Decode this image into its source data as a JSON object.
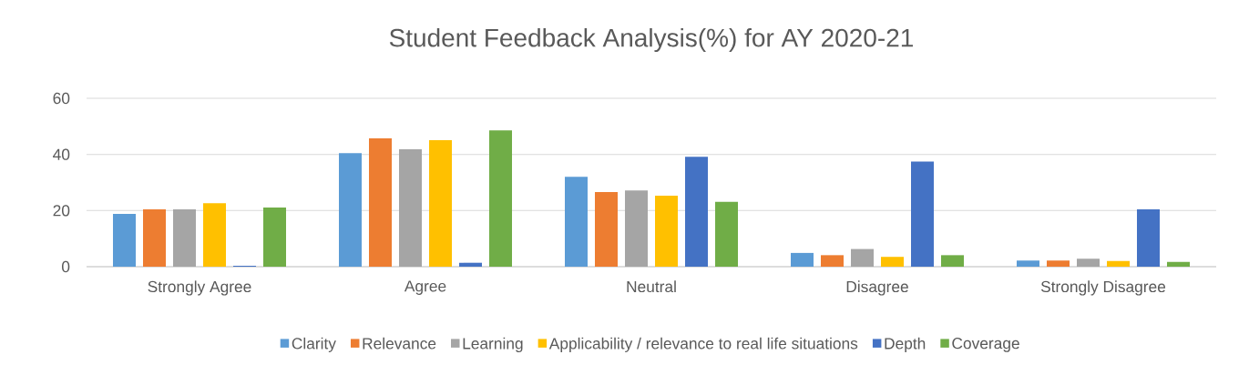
{
  "chart_data": {
    "type": "bar",
    "title": "Student Feedback Analysis(%) for AY 2020-21",
    "categories": [
      "Strongly Agree",
      "Agree",
      "Neutral",
      "Disagree",
      "Strongly Disagree"
    ],
    "series": [
      {
        "name": "Clarity",
        "color": "#5b9bd5",
        "values": [
          18.8,
          40.5,
          32.0,
          4.9,
          2.2
        ]
      },
      {
        "name": "Relevance",
        "color": "#ed7d31",
        "values": [
          20.4,
          45.7,
          26.6,
          4.1,
          2.2
        ]
      },
      {
        "name": "Learning",
        "color": "#a5a5a5",
        "values": [
          20.4,
          41.8,
          27.2,
          6.3,
          2.8
        ]
      },
      {
        "name": "Applicability / relevance to real life situations",
        "color": "#ffc000",
        "values": [
          22.6,
          45.1,
          25.3,
          3.5,
          2.0
        ]
      },
      {
        "name": "Depth",
        "color": "#4472c4",
        "values": [
          0.3,
          1.4,
          39.2,
          37.5,
          20.4
        ]
      },
      {
        "name": "Coverage",
        "color": "#70ad47",
        "values": [
          21.1,
          48.6,
          23.1,
          4.1,
          1.7
        ]
      }
    ],
    "ylim": [
      0,
      60
    ],
    "yticks": [
      0,
      20,
      40,
      60
    ],
    "grid": "y",
    "legend": "bottom"
  }
}
